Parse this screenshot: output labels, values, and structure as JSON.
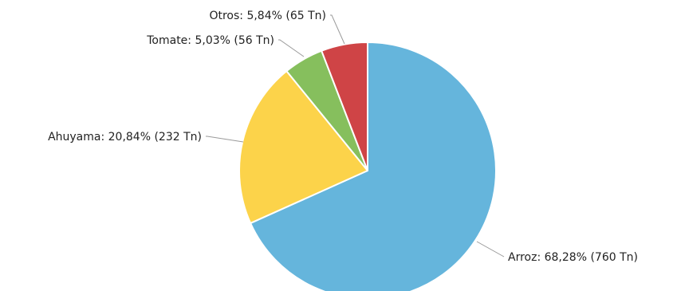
{
  "chart_data": {
    "type": "pie",
    "title": "",
    "slices": [
      {
        "name": "Arroz",
        "value": 760,
        "percent": 68.28,
        "label": "Arroz: 68,28% (760 Tn)",
        "color": "#65b5dc"
      },
      {
        "name": "Ahuyama",
        "value": 232,
        "percent": 20.84,
        "label": "Ahuyama: 20,84% (232 Tn)",
        "color": "#fcd34a"
      },
      {
        "name": "Tomate",
        "value": 56,
        "percent": 5.03,
        "label": "Tomate: 5,03% (56 Tn)",
        "color": "#86bf5d"
      },
      {
        "name": "Otros",
        "value": 65,
        "percent": 5.84,
        "label": "Otros: 5,84% (65 Tn)",
        "color": "#cf4446"
      }
    ],
    "unit": "Tn",
    "start": "top",
    "direction": "clockwise"
  }
}
